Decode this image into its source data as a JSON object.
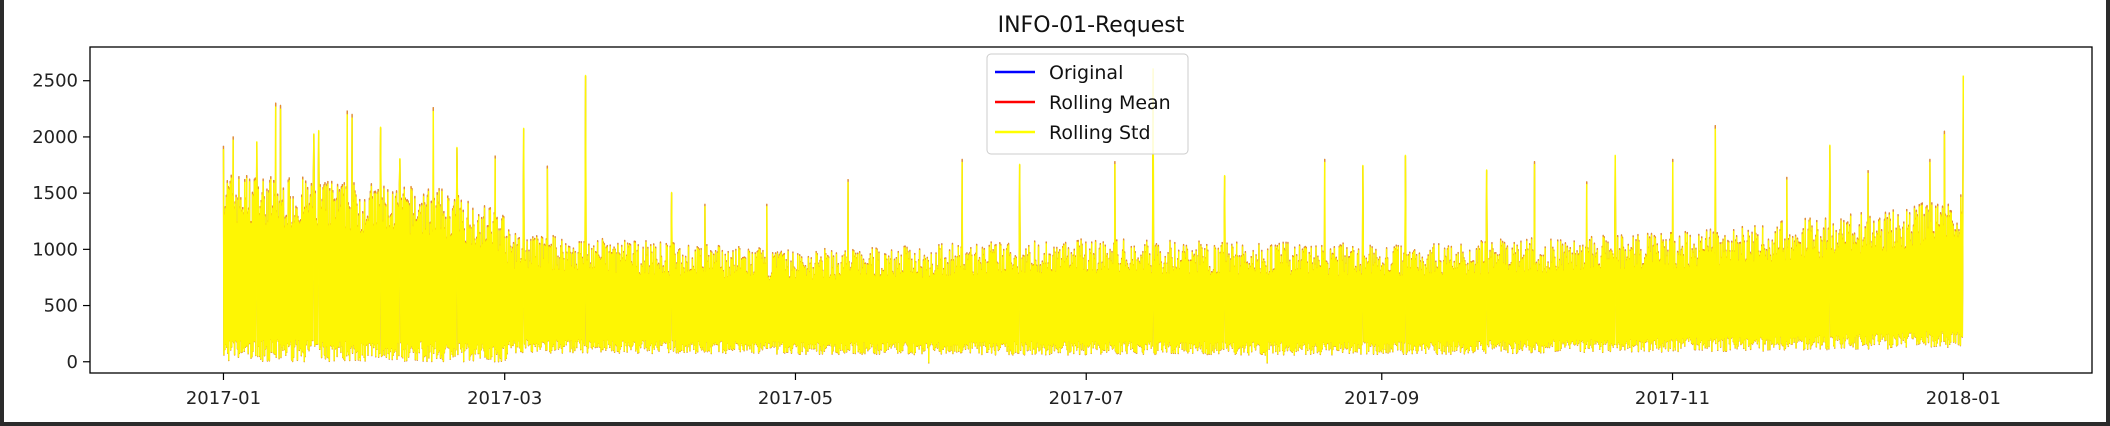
{
  "chart_data": {
    "type": "line",
    "title": "INFO-01-Request",
    "xlabel": "",
    "ylabel": "",
    "x_range": [
      "2016-12-04",
      "2018-01-28"
    ],
    "ylim": [
      -100,
      2800
    ],
    "x_ticks": [
      "2017-01",
      "2017-03",
      "2017-05",
      "2017-07",
      "2017-09",
      "2017-11",
      "2018-01"
    ],
    "y_ticks": [
      0,
      500,
      1000,
      1500,
      2000,
      2500
    ],
    "grid": false,
    "legend_position": "upper center",
    "series": [
      {
        "name": "Original",
        "color": "#0000ff",
        "frequency": "hourly",
        "start": "2017-01-01",
        "end": "2018-01-01",
        "approx_typical_low": [
          [
            "2017-01-01",
            0
          ],
          [
            "2017-03-01",
            0
          ],
          [
            "2017-03-02",
            80
          ],
          [
            "2017-06-01",
            60
          ],
          [
            "2017-09-01",
            60
          ],
          [
            "2017-12-01",
            100
          ],
          [
            "2018-01-01",
            120
          ]
        ],
        "approx_typical_high": [
          [
            "2017-01-01",
            1700
          ],
          [
            "2017-02-15",
            1550
          ],
          [
            "2017-03-01",
            1350
          ],
          [
            "2017-03-02",
            1150
          ],
          [
            "2017-05-01",
            1000
          ],
          [
            "2017-07-01",
            1100
          ],
          [
            "2017-09-01",
            1050
          ],
          [
            "2017-11-01",
            1150
          ],
          [
            "2017-12-15",
            1350
          ],
          [
            "2018-01-01",
            1500
          ]
        ],
        "peaks": [
          [
            "2017-01-01",
            1920
          ],
          [
            "2017-01-03",
            2000
          ],
          [
            "2017-01-08",
            1950
          ],
          [
            "2017-01-12",
            2300
          ],
          [
            "2017-01-13",
            2280
          ],
          [
            "2017-01-20",
            2020
          ],
          [
            "2017-01-21",
            2050
          ],
          [
            "2017-01-27",
            2230
          ],
          [
            "2017-01-28",
            2200
          ],
          [
            "2017-02-03",
            2080
          ],
          [
            "2017-02-07",
            1800
          ],
          [
            "2017-02-14",
            2260
          ],
          [
            "2017-02-19",
            1900
          ],
          [
            "2017-02-27",
            1830
          ],
          [
            "2017-03-05",
            2070
          ],
          [
            "2017-03-10",
            1740
          ],
          [
            "2017-03-18",
            2540
          ],
          [
            "2017-04-05",
            1500
          ],
          [
            "2017-04-12",
            1400
          ],
          [
            "2017-04-25",
            1400
          ],
          [
            "2017-05-12",
            1620
          ],
          [
            "2017-06-05",
            1800
          ],
          [
            "2017-06-17",
            1750
          ],
          [
            "2017-07-07",
            1780
          ],
          [
            "2017-07-15",
            2600
          ],
          [
            "2017-07-30",
            1650
          ],
          [
            "2017-08-20",
            1800
          ],
          [
            "2017-08-28",
            1740
          ],
          [
            "2017-09-06",
            1830
          ],
          [
            "2017-09-23",
            1700
          ],
          [
            "2017-10-03",
            1780
          ],
          [
            "2017-10-14",
            1600
          ],
          [
            "2017-10-20",
            1830
          ],
          [
            "2017-11-01",
            1800
          ],
          [
            "2017-11-10",
            2100
          ],
          [
            "2017-11-25",
            1640
          ],
          [
            "2017-12-04",
            1920
          ],
          [
            "2017-12-12",
            1700
          ],
          [
            "2017-12-25",
            1800
          ],
          [
            "2017-12-28",
            2050
          ],
          [
            "2018-01-01",
            2540
          ]
        ],
        "dips": [
          [
            "2017-05-29",
            -10
          ],
          [
            "2017-08-08",
            -10
          ]
        ]
      },
      {
        "name": "Rolling Mean",
        "color": "#ff0000",
        "window": 1,
        "note": ""
      },
      {
        "name": "Rolling Std",
        "color": "#ffff00",
        "window": 1,
        "note": ""
      }
    ]
  }
}
